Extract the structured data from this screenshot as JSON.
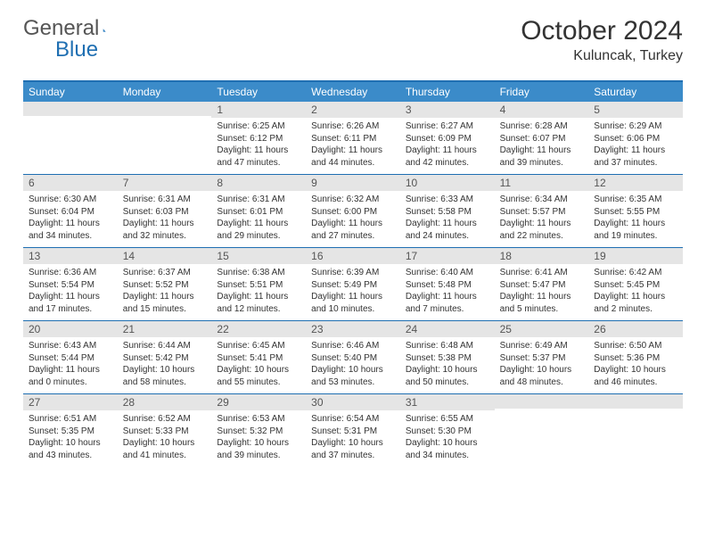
{
  "brand": {
    "word1": "General",
    "word2": "Blue"
  },
  "title": "October 2024",
  "location": "Kuluncak, Turkey",
  "accent": "#3b8bc9",
  "rule": "#1f6fb2",
  "daynum_bg": "#e5e5e5",
  "dayNames": [
    "Sunday",
    "Monday",
    "Tuesday",
    "Wednesday",
    "Thursday",
    "Friday",
    "Saturday"
  ],
  "weeks": [
    [
      {
        "n": "",
        "lines": [
          "",
          "",
          "",
          ""
        ]
      },
      {
        "n": "",
        "lines": [
          "",
          "",
          "",
          ""
        ]
      },
      {
        "n": "1",
        "lines": [
          "Sunrise: 6:25 AM",
          "Sunset: 6:12 PM",
          "Daylight: 11 hours",
          "and 47 minutes."
        ]
      },
      {
        "n": "2",
        "lines": [
          "Sunrise: 6:26 AM",
          "Sunset: 6:11 PM",
          "Daylight: 11 hours",
          "and 44 minutes."
        ]
      },
      {
        "n": "3",
        "lines": [
          "Sunrise: 6:27 AM",
          "Sunset: 6:09 PM",
          "Daylight: 11 hours",
          "and 42 minutes."
        ]
      },
      {
        "n": "4",
        "lines": [
          "Sunrise: 6:28 AM",
          "Sunset: 6:07 PM",
          "Daylight: 11 hours",
          "and 39 minutes."
        ]
      },
      {
        "n": "5",
        "lines": [
          "Sunrise: 6:29 AM",
          "Sunset: 6:06 PM",
          "Daylight: 11 hours",
          "and 37 minutes."
        ]
      }
    ],
    [
      {
        "n": "6",
        "lines": [
          "Sunrise: 6:30 AM",
          "Sunset: 6:04 PM",
          "Daylight: 11 hours",
          "and 34 minutes."
        ]
      },
      {
        "n": "7",
        "lines": [
          "Sunrise: 6:31 AM",
          "Sunset: 6:03 PM",
          "Daylight: 11 hours",
          "and 32 minutes."
        ]
      },
      {
        "n": "8",
        "lines": [
          "Sunrise: 6:31 AM",
          "Sunset: 6:01 PM",
          "Daylight: 11 hours",
          "and 29 minutes."
        ]
      },
      {
        "n": "9",
        "lines": [
          "Sunrise: 6:32 AM",
          "Sunset: 6:00 PM",
          "Daylight: 11 hours",
          "and 27 minutes."
        ]
      },
      {
        "n": "10",
        "lines": [
          "Sunrise: 6:33 AM",
          "Sunset: 5:58 PM",
          "Daylight: 11 hours",
          "and 24 minutes."
        ]
      },
      {
        "n": "11",
        "lines": [
          "Sunrise: 6:34 AM",
          "Sunset: 5:57 PM",
          "Daylight: 11 hours",
          "and 22 minutes."
        ]
      },
      {
        "n": "12",
        "lines": [
          "Sunrise: 6:35 AM",
          "Sunset: 5:55 PM",
          "Daylight: 11 hours",
          "and 19 minutes."
        ]
      }
    ],
    [
      {
        "n": "13",
        "lines": [
          "Sunrise: 6:36 AM",
          "Sunset: 5:54 PM",
          "Daylight: 11 hours",
          "and 17 minutes."
        ]
      },
      {
        "n": "14",
        "lines": [
          "Sunrise: 6:37 AM",
          "Sunset: 5:52 PM",
          "Daylight: 11 hours",
          "and 15 minutes."
        ]
      },
      {
        "n": "15",
        "lines": [
          "Sunrise: 6:38 AM",
          "Sunset: 5:51 PM",
          "Daylight: 11 hours",
          "and 12 minutes."
        ]
      },
      {
        "n": "16",
        "lines": [
          "Sunrise: 6:39 AM",
          "Sunset: 5:49 PM",
          "Daylight: 11 hours",
          "and 10 minutes."
        ]
      },
      {
        "n": "17",
        "lines": [
          "Sunrise: 6:40 AM",
          "Sunset: 5:48 PM",
          "Daylight: 11 hours",
          "and 7 minutes."
        ]
      },
      {
        "n": "18",
        "lines": [
          "Sunrise: 6:41 AM",
          "Sunset: 5:47 PM",
          "Daylight: 11 hours",
          "and 5 minutes."
        ]
      },
      {
        "n": "19",
        "lines": [
          "Sunrise: 6:42 AM",
          "Sunset: 5:45 PM",
          "Daylight: 11 hours",
          "and 2 minutes."
        ]
      }
    ],
    [
      {
        "n": "20",
        "lines": [
          "Sunrise: 6:43 AM",
          "Sunset: 5:44 PM",
          "Daylight: 11 hours",
          "and 0 minutes."
        ]
      },
      {
        "n": "21",
        "lines": [
          "Sunrise: 6:44 AM",
          "Sunset: 5:42 PM",
          "Daylight: 10 hours",
          "and 58 minutes."
        ]
      },
      {
        "n": "22",
        "lines": [
          "Sunrise: 6:45 AM",
          "Sunset: 5:41 PM",
          "Daylight: 10 hours",
          "and 55 minutes."
        ]
      },
      {
        "n": "23",
        "lines": [
          "Sunrise: 6:46 AM",
          "Sunset: 5:40 PM",
          "Daylight: 10 hours",
          "and 53 minutes."
        ]
      },
      {
        "n": "24",
        "lines": [
          "Sunrise: 6:48 AM",
          "Sunset: 5:38 PM",
          "Daylight: 10 hours",
          "and 50 minutes."
        ]
      },
      {
        "n": "25",
        "lines": [
          "Sunrise: 6:49 AM",
          "Sunset: 5:37 PM",
          "Daylight: 10 hours",
          "and 48 minutes."
        ]
      },
      {
        "n": "26",
        "lines": [
          "Sunrise: 6:50 AM",
          "Sunset: 5:36 PM",
          "Daylight: 10 hours",
          "and 46 minutes."
        ]
      }
    ],
    [
      {
        "n": "27",
        "lines": [
          "Sunrise: 6:51 AM",
          "Sunset: 5:35 PM",
          "Daylight: 10 hours",
          "and 43 minutes."
        ]
      },
      {
        "n": "28",
        "lines": [
          "Sunrise: 6:52 AM",
          "Sunset: 5:33 PM",
          "Daylight: 10 hours",
          "and 41 minutes."
        ]
      },
      {
        "n": "29",
        "lines": [
          "Sunrise: 6:53 AM",
          "Sunset: 5:32 PM",
          "Daylight: 10 hours",
          "and 39 minutes."
        ]
      },
      {
        "n": "30",
        "lines": [
          "Sunrise: 6:54 AM",
          "Sunset: 5:31 PM",
          "Daylight: 10 hours",
          "and 37 minutes."
        ]
      },
      {
        "n": "31",
        "lines": [
          "Sunrise: 6:55 AM",
          "Sunset: 5:30 PM",
          "Daylight: 10 hours",
          "and 34 minutes."
        ]
      },
      {
        "n": "",
        "lines": [
          "",
          "",
          "",
          ""
        ]
      },
      {
        "n": "",
        "lines": [
          "",
          "",
          "",
          ""
        ]
      }
    ]
  ]
}
